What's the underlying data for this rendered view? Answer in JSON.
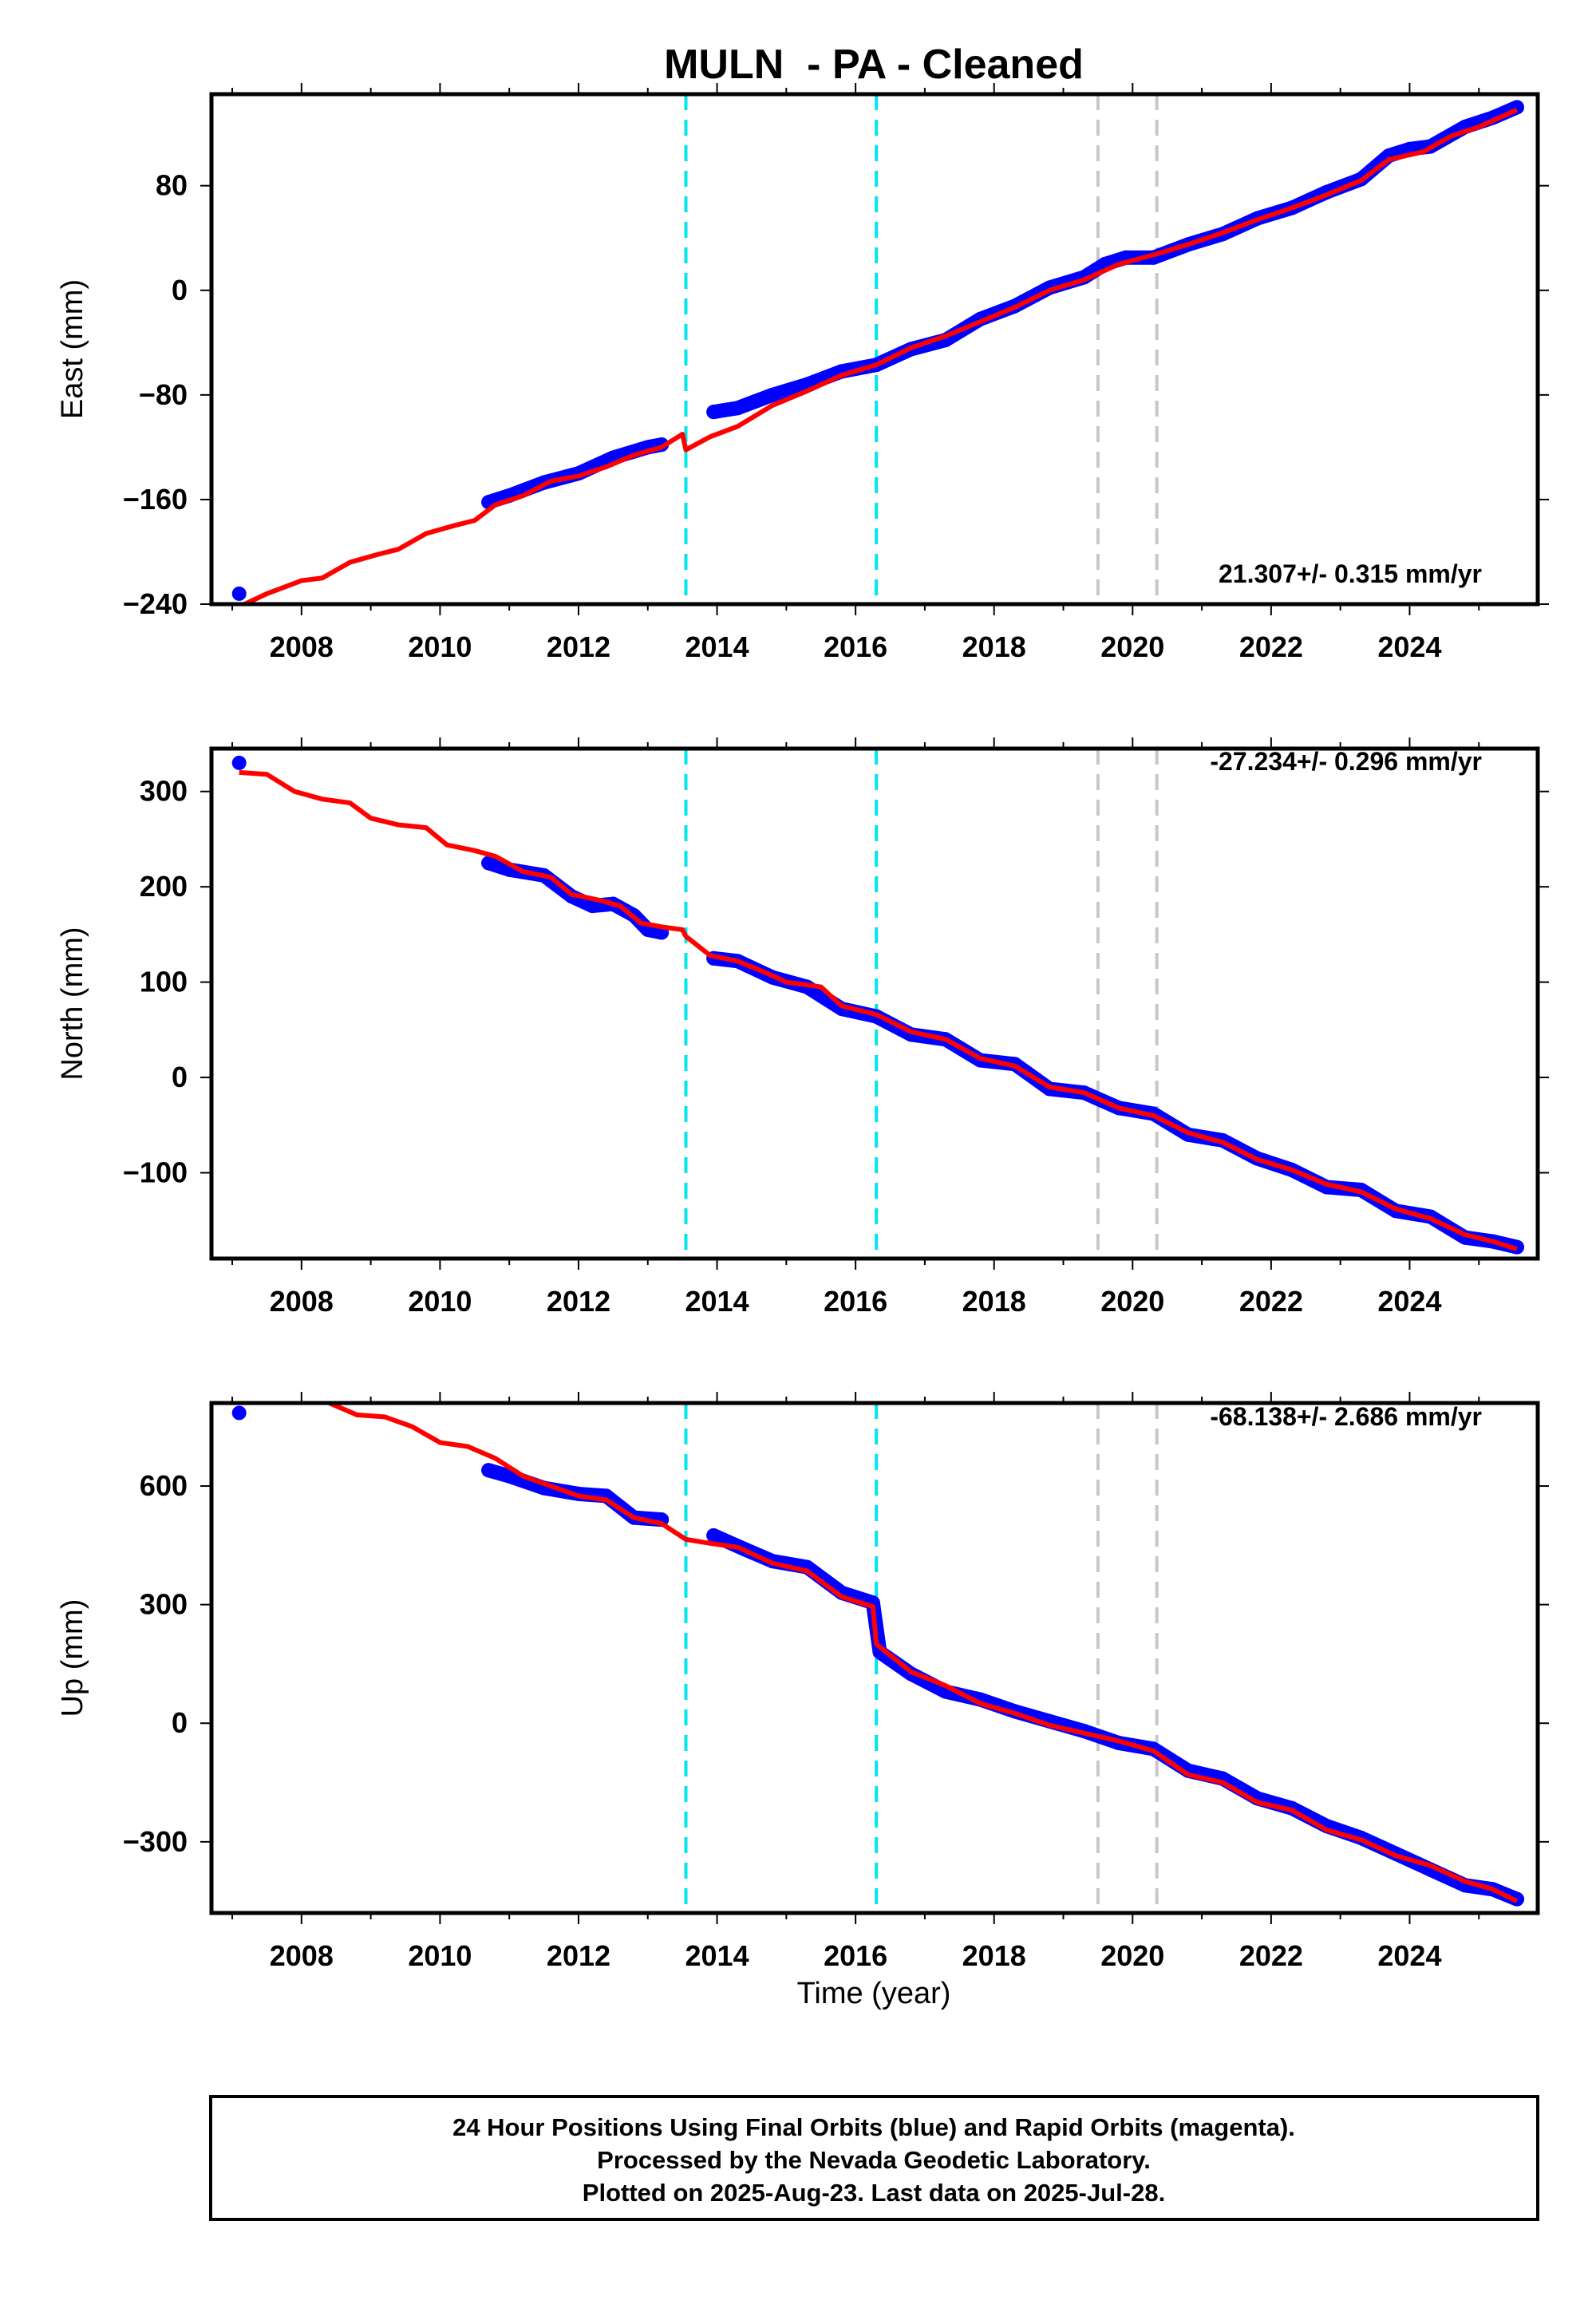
{
  "title": "MULN  - PA - Cleaned",
  "xlabel": "Time (year)",
  "footer": {
    "line1": "24 Hour Positions Using Final Orbits (blue) and Rapid Orbits (magenta).",
    "line2": "Processed by the Nevada Geodetic Laboratory.",
    "line3": "Plotted on 2025-Aug-23. Last data on 2025-Jul-28."
  },
  "colors": {
    "data": "#0000ff",
    "model": "#ff0000",
    "event_cyan": "#00e5ee",
    "event_gray": "#c8c8c8",
    "frame": "#000000"
  },
  "chart_data": [
    {
      "type": "scatter",
      "component": "East",
      "ylabel": "East (mm)",
      "rate_label": "21.307+/- 0.315 mm/yr",
      "xlim": [
        2006.7,
        2025.85
      ],
      "ylim": [
        -240,
        150
      ],
      "yticks": [
        -240,
        -160,
        -80,
        0,
        80
      ],
      "xticks": [
        2008,
        2010,
        2012,
        2014,
        2016,
        2018,
        2020,
        2022,
        2024
      ],
      "vlines_cyan": [
        2013.55,
        2016.3
      ],
      "vlines_gray": [
        2019.5,
        2020.35
      ],
      "data_points": [
        [
          2007.1,
          -232
        ],
        [
          2010.7,
          -162
        ],
        [
          2011.0,
          -157
        ],
        [
          2011.5,
          -147
        ],
        [
          2012.0,
          -140
        ],
        [
          2012.5,
          -128
        ],
        [
          2013.0,
          -120
        ],
        [
          2013.2,
          -118
        ],
        [
          2013.95,
          -93
        ],
        [
          2014.3,
          -90
        ],
        [
          2014.8,
          -80
        ],
        [
          2015.3,
          -72
        ],
        [
          2015.8,
          -62
        ],
        [
          2016.3,
          -57
        ],
        [
          2016.8,
          -45
        ],
        [
          2017.3,
          -38
        ],
        [
          2017.8,
          -22
        ],
        [
          2018.3,
          -12
        ],
        [
          2018.8,
          2
        ],
        [
          2019.3,
          10
        ],
        [
          2019.6,
          20
        ],
        [
          2019.9,
          25
        ],
        [
          2020.3,
          25
        ],
        [
          2020.8,
          35
        ],
        [
          2021.3,
          43
        ],
        [
          2021.8,
          55
        ],
        [
          2022.3,
          63
        ],
        [
          2022.8,
          75
        ],
        [
          2023.3,
          85
        ],
        [
          2023.7,
          103
        ],
        [
          2024.0,
          108
        ],
        [
          2024.3,
          110
        ],
        [
          2024.8,
          125
        ],
        [
          2025.2,
          132
        ],
        [
          2025.55,
          140
        ]
      ],
      "model_line": [
        [
          2007.1,
          -242
        ],
        [
          2007.5,
          -232
        ],
        [
          2008.0,
          -222
        ],
        [
          2008.3,
          -220
        ],
        [
          2008.7,
          -208
        ],
        [
          2009.1,
          -202
        ],
        [
          2009.4,
          -198
        ],
        [
          2009.8,
          -186
        ],
        [
          2010.2,
          -180
        ],
        [
          2010.5,
          -176
        ],
        [
          2010.8,
          -164
        ],
        [
          2011.2,
          -157
        ],
        [
          2011.6,
          -146
        ],
        [
          2012.0,
          -142
        ],
        [
          2012.4,
          -135
        ],
        [
          2012.8,
          -126
        ],
        [
          2013.2,
          -120
        ],
        [
          2013.5,
          -110
        ],
        [
          2013.55,
          -122
        ],
        [
          2013.9,
          -112
        ],
        [
          2014.3,
          -104
        ],
        [
          2014.8,
          -88
        ],
        [
          2015.3,
          -77
        ],
        [
          2015.8,
          -65
        ],
        [
          2016.3,
          -57
        ],
        [
          2016.8,
          -44
        ],
        [
          2017.3,
          -35
        ],
        [
          2017.8,
          -24
        ],
        [
          2018.3,
          -13
        ],
        [
          2018.8,
          0
        ],
        [
          2019.3,
          8
        ],
        [
          2019.8,
          20
        ],
        [
          2020.3,
          27
        ],
        [
          2020.8,
          35
        ],
        [
          2021.3,
          44
        ],
        [
          2021.8,
          54
        ],
        [
          2022.3,
          63
        ],
        [
          2022.8,
          73
        ],
        [
          2023.3,
          84
        ],
        [
          2023.7,
          100
        ],
        [
          2024.2,
          106
        ],
        [
          2024.6,
          118
        ],
        [
          2025.0,
          125
        ],
        [
          2025.55,
          138
        ]
      ]
    },
    {
      "type": "scatter",
      "component": "North",
      "ylabel": "North (mm)",
      "rate_label": "-27.234+/- 0.296 mm/yr",
      "xlim": [
        2006.7,
        2025.85
      ],
      "ylim": [
        -190,
        345
      ],
      "yticks": [
        -100,
        0,
        100,
        200,
        300
      ],
      "xticks": [
        2008,
        2010,
        2012,
        2014,
        2016,
        2018,
        2020,
        2022,
        2024
      ],
      "vlines_cyan": [
        2013.55,
        2016.3
      ],
      "vlines_gray": [
        2019.5,
        2020.35
      ],
      "data_points": [
        [
          2007.1,
          330
        ],
        [
          2010.7,
          225
        ],
        [
          2011.0,
          218
        ],
        [
          2011.5,
          212
        ],
        [
          2011.9,
          190
        ],
        [
          2012.2,
          180
        ],
        [
          2012.5,
          182
        ],
        [
          2012.8,
          170
        ],
        [
          2013.0,
          155
        ],
        [
          2013.2,
          152
        ],
        [
          2013.95,
          125
        ],
        [
          2014.3,
          122
        ],
        [
          2014.8,
          105
        ],
        [
          2015.3,
          95
        ],
        [
          2015.8,
          72
        ],
        [
          2016.3,
          64
        ],
        [
          2016.8,
          45
        ],
        [
          2017.3,
          40
        ],
        [
          2017.8,
          18
        ],
        [
          2018.3,
          14
        ],
        [
          2018.8,
          -12
        ],
        [
          2019.3,
          -16
        ],
        [
          2019.8,
          -32
        ],
        [
          2020.3,
          -38
        ],
        [
          2020.8,
          -60
        ],
        [
          2021.3,
          -66
        ],
        [
          2021.8,
          -85
        ],
        [
          2022.3,
          -97
        ],
        [
          2022.8,
          -115
        ],
        [
          2023.3,
          -118
        ],
        [
          2023.8,
          -140
        ],
        [
          2024.3,
          -146
        ],
        [
          2024.8,
          -168
        ],
        [
          2025.2,
          -172
        ],
        [
          2025.55,
          -178
        ]
      ],
      "model_line": [
        [
          2007.1,
          320
        ],
        [
          2007.5,
          318
        ],
        [
          2007.9,
          300
        ],
        [
          2008.3,
          292
        ],
        [
          2008.7,
          288
        ],
        [
          2009.0,
          272
        ],
        [
          2009.4,
          265
        ],
        [
          2009.8,
          262
        ],
        [
          2010.1,
          244
        ],
        [
          2010.5,
          238
        ],
        [
          2010.8,
          232
        ],
        [
          2011.2,
          216
        ],
        [
          2011.6,
          210
        ],
        [
          2011.9,
          192
        ],
        [
          2012.3,
          186
        ],
        [
          2012.6,
          180
        ],
        [
          2012.9,
          162
        ],
        [
          2013.2,
          158
        ],
        [
          2013.5,
          155
        ],
        [
          2013.55,
          148
        ],
        [
          2013.9,
          128
        ],
        [
          2014.3,
          122
        ],
        [
          2014.7,
          110
        ],
        [
          2015.0,
          100
        ],
        [
          2015.5,
          95
        ],
        [
          2015.8,
          75
        ],
        [
          2016.3,
          66
        ],
        [
          2016.8,
          48
        ],
        [
          2017.3,
          40
        ],
        [
          2017.8,
          20
        ],
        [
          2018.3,
          12
        ],
        [
          2018.8,
          -10
        ],
        [
          2019.3,
          -16
        ],
        [
          2019.8,
          -32
        ],
        [
          2020.3,
          -40
        ],
        [
          2020.8,
          -58
        ],
        [
          2021.3,
          -68
        ],
        [
          2021.8,
          -86
        ],
        [
          2022.3,
          -97
        ],
        [
          2022.8,
          -112
        ],
        [
          2023.3,
          -120
        ],
        [
          2023.8,
          -138
        ],
        [
          2024.3,
          -148
        ],
        [
          2024.8,
          -165
        ],
        [
          2025.2,
          -172
        ],
        [
          2025.55,
          -180
        ]
      ]
    },
    {
      "type": "scatter",
      "component": "Up",
      "ylabel": "Up (mm)",
      "rate_label": "-68.138+/- 2.686 mm/yr",
      "xlim": [
        2006.7,
        2025.85
      ],
      "ylim": [
        -480,
        810
      ],
      "yticks": [
        -300,
        0,
        300,
        600
      ],
      "xticks": [
        2008,
        2010,
        2012,
        2014,
        2016,
        2018,
        2020,
        2022,
        2024
      ],
      "vlines_cyan": [
        2013.55,
        2016.3
      ],
      "vlines_gray": [
        2019.5,
        2020.35
      ],
      "data_points": [
        [
          2007.1,
          785
        ],
        [
          2010.7,
          640
        ],
        [
          2011.0,
          625
        ],
        [
          2011.5,
          595
        ],
        [
          2012.0,
          580
        ],
        [
          2012.4,
          575
        ],
        [
          2012.8,
          520
        ],
        [
          2013.2,
          515
        ],
        [
          2013.95,
          475
        ],
        [
          2014.4,
          440
        ],
        [
          2014.8,
          410
        ],
        [
          2015.3,
          395
        ],
        [
          2015.8,
          330
        ],
        [
          2016.25,
          305
        ],
        [
          2016.35,
          180
        ],
        [
          2016.8,
          125
        ],
        [
          2017.3,
          80
        ],
        [
          2017.8,
          60
        ],
        [
          2018.3,
          30
        ],
        [
          2018.8,
          5
        ],
        [
          2019.3,
          -20
        ],
        [
          2019.8,
          -50
        ],
        [
          2020.3,
          -65
        ],
        [
          2020.8,
          -120
        ],
        [
          2021.3,
          -140
        ],
        [
          2021.8,
          -190
        ],
        [
          2022.3,
          -215
        ],
        [
          2022.8,
          -260
        ],
        [
          2023.3,
          -290
        ],
        [
          2023.8,
          -330
        ],
        [
          2024.3,
          -370
        ],
        [
          2024.8,
          -410
        ],
        [
          2025.2,
          -420
        ],
        [
          2025.55,
          -445
        ]
      ],
      "model_line": [
        [
          2008.4,
          810
        ],
        [
          2008.8,
          780
        ],
        [
          2009.2,
          775
        ],
        [
          2009.6,
          750
        ],
        [
          2010.0,
          710
        ],
        [
          2010.4,
          700
        ],
        [
          2010.8,
          670
        ],
        [
          2011.2,
          625
        ],
        [
          2011.6,
          600
        ],
        [
          2012.0,
          575
        ],
        [
          2012.4,
          565
        ],
        [
          2012.8,
          520
        ],
        [
          2013.2,
          505
        ],
        [
          2013.55,
          465
        ],
        [
          2013.9,
          455
        ],
        [
          2014.3,
          445
        ],
        [
          2014.8,
          405
        ],
        [
          2015.3,
          385
        ],
        [
          2015.8,
          320
        ],
        [
          2016.25,
          295
        ],
        [
          2016.3,
          200
        ],
        [
          2016.8,
          130
        ],
        [
          2017.3,
          95
        ],
        [
          2017.8,
          50
        ],
        [
          2018.3,
          25
        ],
        [
          2018.8,
          -5
        ],
        [
          2019.3,
          -25
        ],
        [
          2019.8,
          -45
        ],
        [
          2020.3,
          -70
        ],
        [
          2020.8,
          -130
        ],
        [
          2021.3,
          -150
        ],
        [
          2021.8,
          -200
        ],
        [
          2022.3,
          -220
        ],
        [
          2022.8,
          -270
        ],
        [
          2023.3,
          -295
        ],
        [
          2023.8,
          -335
        ],
        [
          2024.3,
          -360
        ],
        [
          2024.8,
          -400
        ],
        [
          2025.2,
          -420
        ],
        [
          2025.55,
          -450
        ]
      ]
    }
  ]
}
